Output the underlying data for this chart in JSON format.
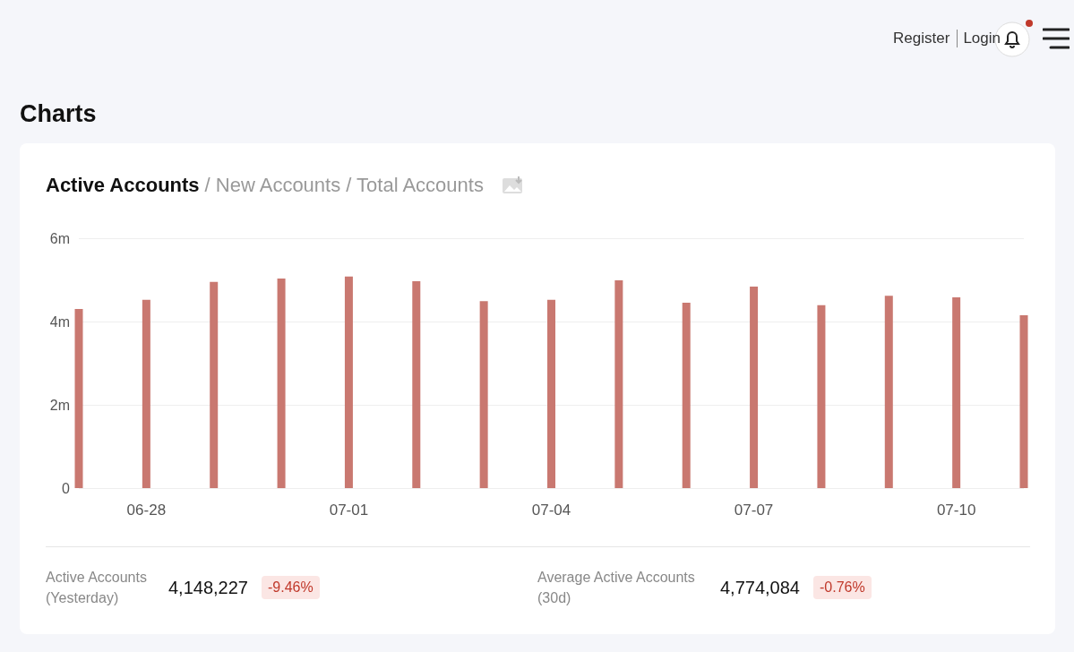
{
  "chart_data": {
    "type": "bar",
    "title": "Active Accounts",
    "annotations": [
      "Register",
      "Login",
      "Charts",
      "/ New Accounts",
      "/ Total Accounts",
      "Active Accounts\n(Yesterday)",
      "4,148,227",
      "-9.46%",
      "Average Active Accounts\n(30d)",
      "4,774,084",
      "-0.76%"
    ],
    "categories": [
      null,
      "06-28",
      null,
      null,
      "07-01",
      null,
      null,
      "07-04",
      null,
      null,
      "07-07",
      null,
      null,
      "07-10",
      null
    ],
    "values": [
      4300000,
      4520000,
      4950000,
      5030000,
      5080000,
      4970000,
      4490000,
      4520000,
      4990000,
      4450000,
      4840000,
      4390000,
      4620000,
      4580000,
      4148227
    ],
    "color": "#c97870",
    "ylim": [
      0,
      6000000
    ],
    "yticks": [
      0,
      {
        "value": 2000000,
        "label": "2m"
      },
      {
        "value": 4000000,
        "label": "4m"
      },
      {
        "value": 6000000,
        "label": "6m"
      }
    ],
    "grid": "y"
  }
}
